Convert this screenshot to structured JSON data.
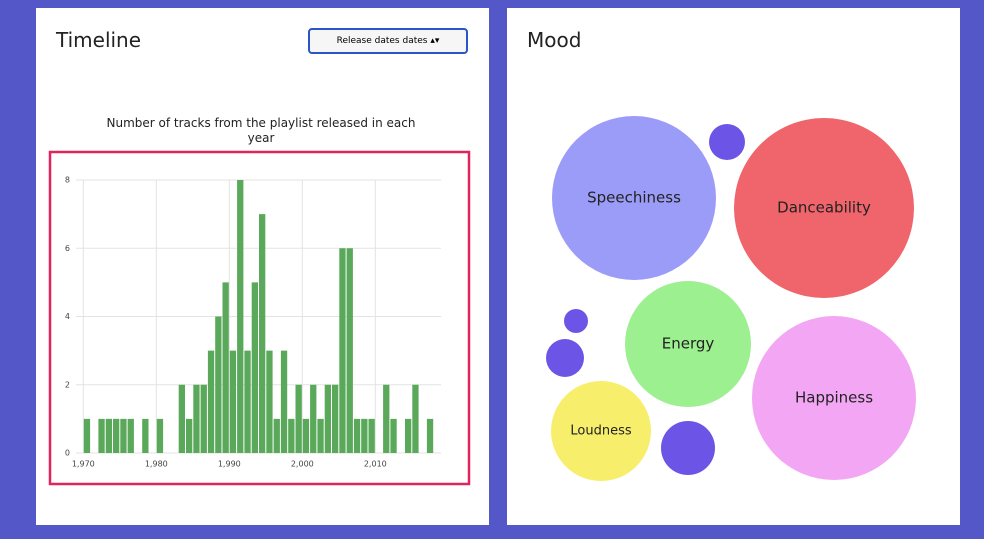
{
  "timeline": {
    "title": "Timeline",
    "select": "Release dates dates"
  },
  "mood": {
    "title": "Mood"
  },
  "chart_data": [
    {
      "type": "histogram",
      "title": "Number of tracks from the playlist released in each year",
      "bins": [
        1970,
        1971,
        1972,
        1973,
        1974,
        1975,
        1976,
        1977,
        1978,
        1979,
        1980,
        1981,
        1982,
        1983,
        1984,
        1985,
        1986,
        1987,
        1988,
        1989,
        1990,
        1991,
        1992,
        1993,
        1994,
        1995,
        1996,
        1997,
        1998,
        1999,
        2000,
        2001,
        2002,
        2003,
        2004,
        2005,
        2006,
        2007,
        2008,
        2009,
        2010,
        2011,
        2012,
        2013,
        2014,
        2015,
        2016,
        2017,
        2018
      ],
      "values": [
        1,
        0,
        1,
        1,
        1,
        1,
        1,
        0,
        1,
        0,
        1,
        0,
        0,
        2,
        1,
        2,
        2,
        3,
        4,
        5,
        3,
        8,
        3,
        5,
        7,
        3,
        1,
        3,
        1,
        2,
        1,
        2,
        1,
        2,
        2,
        6,
        6,
        1,
        1,
        1,
        0,
        2,
        1,
        0,
        1,
        2,
        0,
        1
      ],
      "color": "#5aa85a",
      "xlim": [
        1969,
        2019
      ],
      "xticks": [
        {
          "value": 1970,
          "label": "1,970"
        },
        {
          "value": 1980,
          "label": "1,980"
        },
        {
          "value": 1990,
          "label": "1,990"
        },
        {
          "value": 2000,
          "label": "2,000"
        },
        {
          "value": 2010,
          "label": "2,010"
        }
      ],
      "ylim": [
        0,
        8
      ],
      "yticks": [
        0,
        2,
        4,
        6,
        8
      ],
      "grid": true
    },
    {
      "type": "bubble",
      "labels": [
        "Speechiness",
        "Danceability",
        null,
        "Energy",
        "Happiness",
        "Loudness",
        null,
        null,
        null
      ],
      "values": [
        82,
        90,
        18,
        63,
        82,
        50,
        12,
        19,
        27
      ],
      "colors": [
        "#9b9cf7",
        "#f0646b",
        "#6c55e6",
        "#9cf08f",
        "#f3a6f3",
        "#f7ef6c",
        "#6c55e6",
        "#6c55e6",
        "#6c55e6"
      ]
    }
  ]
}
